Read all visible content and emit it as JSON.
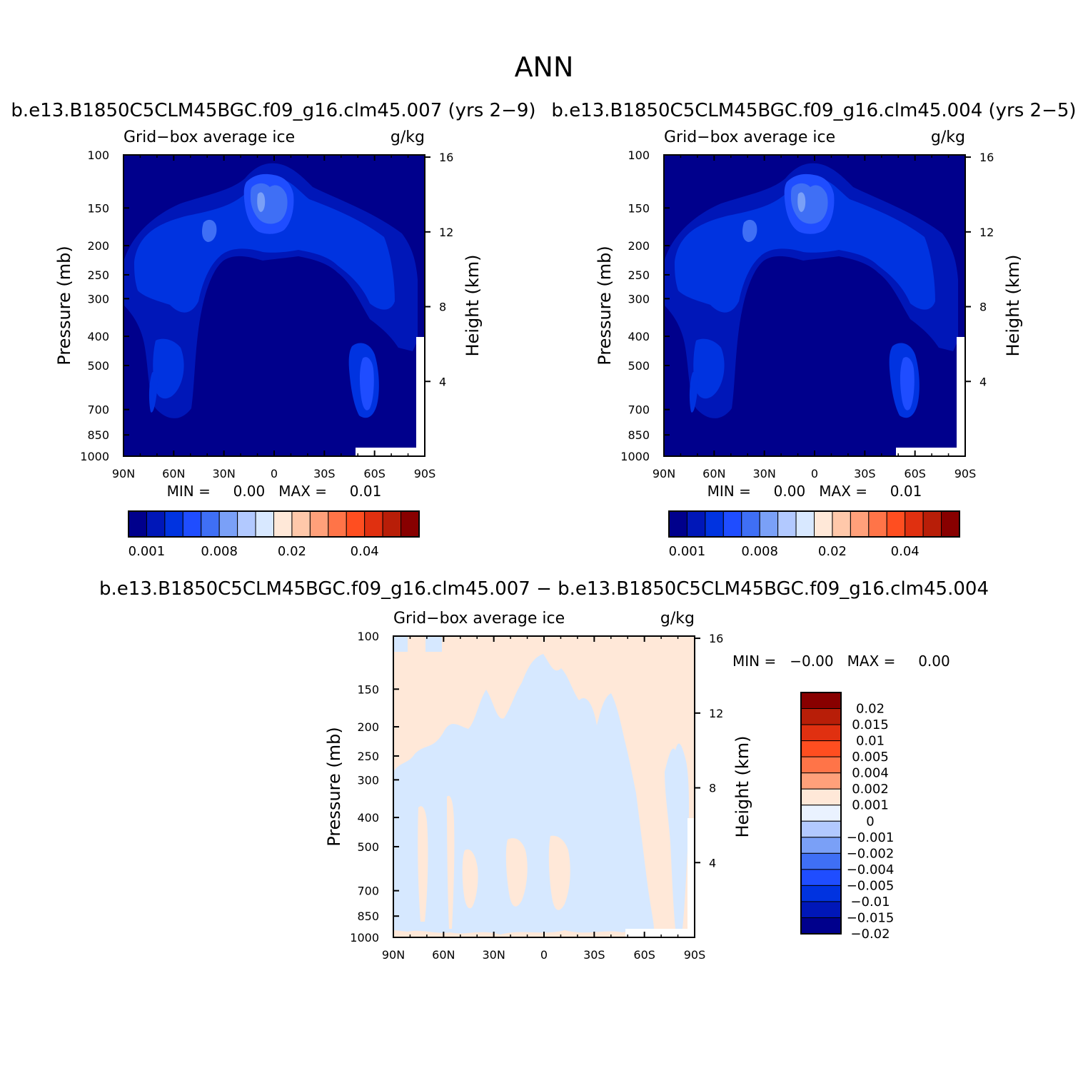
{
  "figure": {
    "title": "ANN"
  },
  "panels": [
    {
      "id": "p1",
      "title": "b.e13.B1850C5CLM45BGC.f09_g16.clm45.007 (yrs 2−9)",
      "subtitle_left": "Grid−box average ice",
      "subtitle_right": "g/kg",
      "ylabel": "Pressure (mb)",
      "ylabel_right": "Height (km)",
      "stats": "MIN =     0.00   MAX =     0.01"
    },
    {
      "id": "p2",
      "title": "b.e13.B1850C5CLM45BGC.f09_g16.clm45.004 (yrs 2−5)",
      "subtitle_left": "Grid−box average ice",
      "subtitle_right": "g/kg",
      "ylabel": "Pressure (mb)",
      "ylabel_right": "Height (km)",
      "stats": "MIN =     0.00   MAX =     0.01"
    },
    {
      "id": "p3",
      "title": "b.e13.B1850C5CLM45BGC.f09_g16.clm45.007 − b.e13.B1850C5CLM45BGC.f09_g16.clm45.004",
      "subtitle_left": "Grid−box average ice",
      "subtitle_right": "g/kg",
      "ylabel": "Pressure (mb)",
      "ylabel_right": "Height (km)",
      "stats": "MIN =   −0.00   MAX =     0.00"
    }
  ],
  "chart_data": [
    {
      "type": "heatmap",
      "title": "b.e13.B1850C5CLM45BGC.f09_g16.clm45.007 (yrs 2−9)",
      "variable": "Grid−box average ice",
      "units": "g/kg",
      "xlabel": "",
      "ylabel": "Pressure (mb)",
      "ylabel_right": "Height (km)",
      "x_ticks": [
        "90N",
        "60N",
        "30N",
        "0",
        "30S",
        "60S",
        "90S"
      ],
      "y_ticks": [
        "100",
        "150",
        "200",
        "250",
        "300",
        "400",
        "500",
        "700",
        "850",
        "1000"
      ],
      "y_ticks_right": [
        "16",
        "12",
        "8",
        "4"
      ],
      "ylim": [
        1000,
        100
      ],
      "min": 0.0,
      "max": 0.01,
      "colorbar_labels": [
        "0.001",
        "0.008",
        "0.02",
        "0.04"
      ]
    },
    {
      "type": "heatmap",
      "title": "b.e13.B1850C5CLM45BGC.f09_g16.clm45.004 (yrs 2−5)",
      "variable": "Grid−box average ice",
      "units": "g/kg",
      "xlabel": "",
      "ylabel": "Pressure (mb)",
      "ylabel_right": "Height (km)",
      "x_ticks": [
        "90N",
        "60N",
        "30N",
        "0",
        "30S",
        "60S",
        "90S"
      ],
      "y_ticks": [
        "100",
        "150",
        "200",
        "250",
        "300",
        "400",
        "500",
        "700",
        "850",
        "1000"
      ],
      "y_ticks_right": [
        "16",
        "12",
        "8",
        "4"
      ],
      "ylim": [
        1000,
        100
      ],
      "min": 0.0,
      "max": 0.01,
      "colorbar_labels": [
        "0.001",
        "0.008",
        "0.02",
        "0.04"
      ]
    },
    {
      "type": "heatmap",
      "title": "b.e13.B1850C5CLM45BGC.f09_g16.clm45.007 − b.e13.B1850C5CLM45BGC.f09_g16.clm45.004",
      "variable": "Grid−box average ice",
      "units": "g/kg",
      "xlabel": "",
      "ylabel": "Pressure (mb)",
      "ylabel_right": "Height (km)",
      "x_ticks": [
        "90N",
        "60N",
        "30N",
        "0",
        "30S",
        "60S",
        "90S"
      ],
      "y_ticks": [
        "100",
        "150",
        "200",
        "250",
        "300",
        "400",
        "500",
        "700",
        "850",
        "1000"
      ],
      "y_ticks_right": [
        "16",
        "12",
        "8",
        "4"
      ],
      "ylim": [
        1000,
        100
      ],
      "min": -0.0,
      "max": 0.0,
      "colorbar_labels": [
        "0.02",
        "0.015",
        "0.01",
        "0.005",
        "0.004",
        "0.002",
        "0.001",
        "0",
        "−0.001",
        "−0.002",
        "−0.004",
        "−0.005",
        "−0.01",
        "−0.015",
        "−0.02"
      ]
    }
  ],
  "colors": {
    "abs_scale": [
      "#00008c",
      "#0017b8",
      "#0033e0",
      "#1f4dff",
      "#3f6ff5",
      "#7aa0f7",
      "#b2c9ff",
      "#d8e8ff",
      "#ffe8d8",
      "#ffc8aa",
      "#ffa07a",
      "#ff7448",
      "#ff4e20",
      "#e03010",
      "#b81e08",
      "#880000"
    ],
    "diff_scale": [
      "#880000",
      "#b81e08",
      "#e03010",
      "#ff4e20",
      "#ff7448",
      "#ffa07a",
      "#ffe8d8",
      "#eaf2ff",
      "#b2c9ff",
      "#7aa0f7",
      "#3f6ff5",
      "#1f4dff",
      "#0033e0",
      "#0017b8",
      "#00008c"
    ]
  }
}
